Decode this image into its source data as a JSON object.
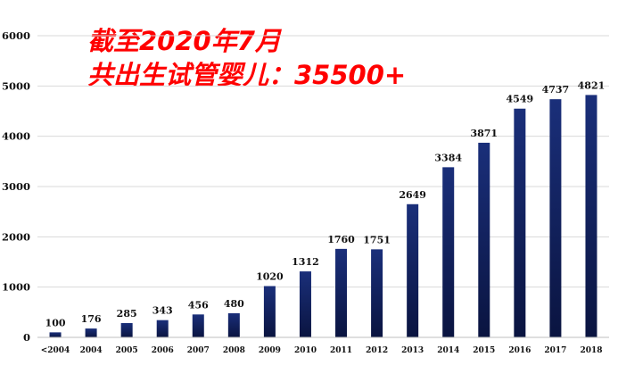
{
  "chart_data": {
    "type": "bar",
    "title": "",
    "xlabel": "",
    "ylabel": "",
    "categories": [
      "<2004",
      "2004",
      "2005",
      "2006",
      "2007",
      "2008",
      "2009",
      "2010",
      "2011",
      "2012",
      "2013",
      "2014",
      "2015",
      "2016",
      "2017",
      "2018"
    ],
    "values": [
      100,
      176,
      285,
      343,
      456,
      480,
      1020,
      1312,
      1760,
      1751,
      2649,
      3384,
      3871,
      4549,
      4737,
      4821
    ],
    "data_labels": [
      "100",
      "176",
      "285",
      "343",
      "456",
      "480",
      "1020",
      "1312",
      "1760",
      "1751",
      "2649",
      "3384",
      "3871",
      "4549",
      "4737",
      "4821"
    ],
    "yticks": [
      0,
      1000,
      2000,
      3000,
      4000,
      5000,
      6000
    ],
    "ytick_labels": [
      "0",
      "1000",
      "2000",
      "3000",
      "4000",
      "5000",
      "6000"
    ],
    "ylim": [
      0,
      6000
    ],
    "grid": true,
    "legend": "none",
    "bar_color_top": "#1a2f7a",
    "bar_color_bottom": "#0a1440",
    "annotations": [
      "截至2020年7月",
      "共出生试管婴儿：35500+"
    ],
    "annotation_color": "#ff0000"
  }
}
